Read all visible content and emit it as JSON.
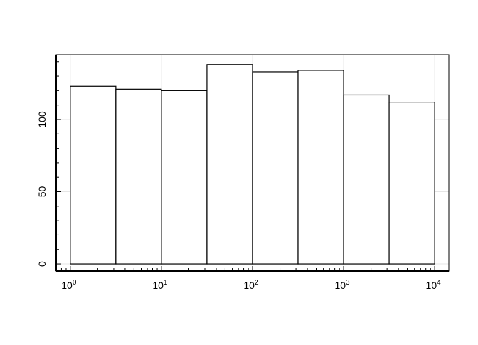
{
  "chart_data": {
    "type": "bar",
    "subtype": "histogram",
    "title": "",
    "xlabel": "",
    "ylabel": "",
    "x_scale": "log10",
    "bin_edges": [
      1,
      3.162,
      10,
      31.62,
      100,
      316.2,
      1000,
      3162,
      10000
    ],
    "values": [
      123,
      121,
      120,
      138,
      133,
      134,
      117,
      112
    ],
    "xlim": [
      0.7,
      14300
    ],
    "ylim": [
      -4.9,
      144.8
    ],
    "x_ticks": [
      {
        "value": 1,
        "base": "10",
        "exp": "0"
      },
      {
        "value": 10,
        "base": "10",
        "exp": "1"
      },
      {
        "value": 100,
        "base": "10",
        "exp": "2"
      },
      {
        "value": 1000,
        "base": "10",
        "exp": "3"
      },
      {
        "value": 10000,
        "base": "10",
        "exp": "4"
      }
    ],
    "y_ticks": [
      {
        "value": 0,
        "label": "0"
      },
      {
        "value": 50,
        "label": "50"
      },
      {
        "value": 100,
        "label": "100"
      }
    ],
    "y_minor_step": 10,
    "grid": true,
    "colors": {
      "bar_fill": "#ffffff",
      "bar_edge": "#000000",
      "grid": "#e5e5e5"
    }
  }
}
